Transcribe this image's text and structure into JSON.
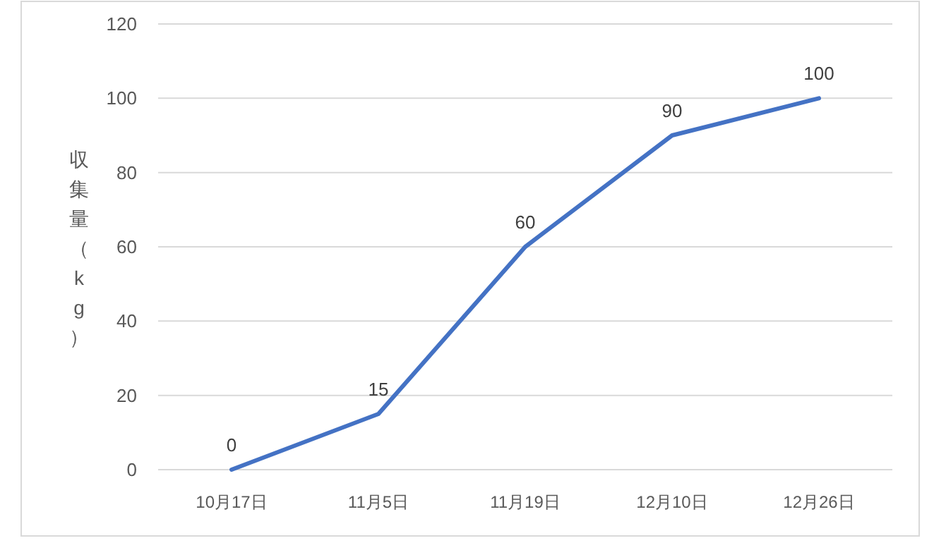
{
  "chart_data": {
    "type": "line",
    "ylabel": "収集量（kg）",
    "categories": [
      "10月17日",
      "11月5日",
      "11月19日",
      "12月10日",
      "12月26日"
    ],
    "series": [
      {
        "color": "#4472c4",
        "values": [
          0,
          15,
          60,
          90,
          100
        ]
      }
    ],
    "ylim": [
      0,
      120
    ],
    "yticks": [
      0,
      20,
      40,
      60,
      80,
      100,
      120
    ],
    "grid": "y",
    "data_labels": true,
    "marker": "none",
    "line_style": "solid"
  }
}
